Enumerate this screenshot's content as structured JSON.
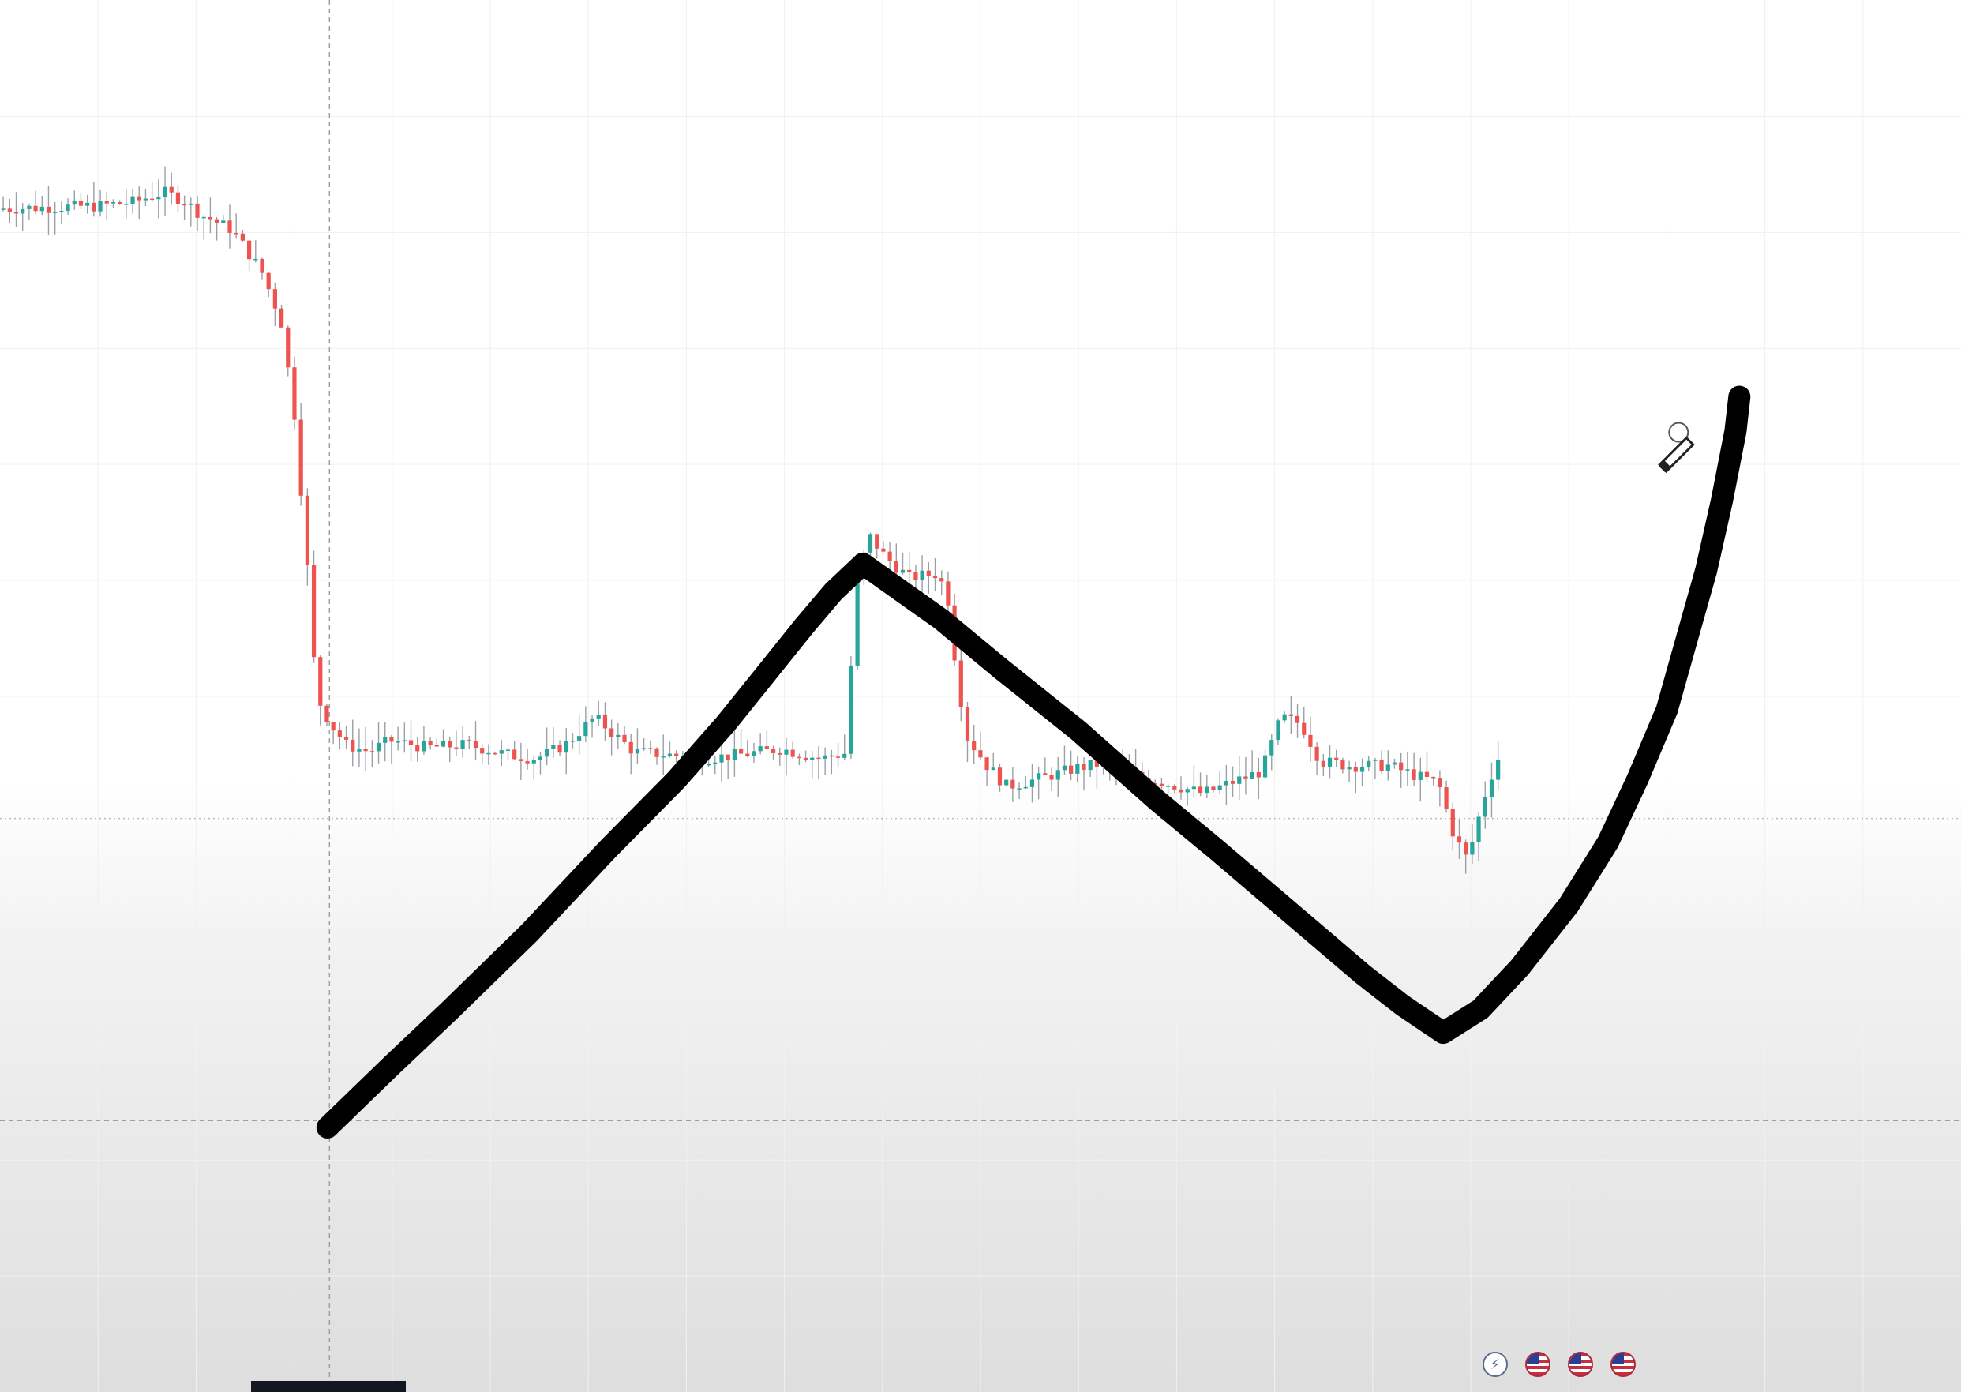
{
  "chart_data": {
    "type": "candlestick",
    "title": "",
    "xlabel": "",
    "ylabel": "",
    "grid": true,
    "colors": {
      "up": "#26a69a",
      "down": "#ef5350",
      "wick": "#9aa0a6",
      "drawing": "#000000",
      "crosshair": "#9aa0a6",
      "grid": "#f1f1f1"
    },
    "ylim": [
      0,
      100
    ],
    "xlim": [
      0,
      100
    ],
    "price_path": [
      [
        0.0,
        85.0
      ],
      [
        5.0,
        85.2
      ],
      [
        7.0,
        85.5
      ],
      [
        8.5,
        86.2
      ],
      [
        9.5,
        85.6
      ],
      [
        10.5,
        84.5
      ],
      [
        12.0,
        83.5
      ],
      [
        13.5,
        80.5
      ],
      [
        14.5,
        77.0
      ],
      [
        15.2,
        70.0
      ],
      [
        15.8,
        60.0
      ],
      [
        16.3,
        50.0
      ],
      [
        17.0,
        48.0
      ],
      [
        17.8,
        46.5
      ],
      [
        19.0,
        46.0
      ],
      [
        20.0,
        46.8
      ],
      [
        22.0,
        46.3
      ],
      [
        24.0,
        46.5
      ],
      [
        26.0,
        45.8
      ],
      [
        27.5,
        45.5
      ],
      [
        29.0,
        46.5
      ],
      [
        30.5,
        48.5
      ],
      [
        31.5,
        47.2
      ],
      [
        32.5,
        46.0
      ],
      [
        34.0,
        45.8
      ],
      [
        36.0,
        45.5
      ],
      [
        38.0,
        45.8
      ],
      [
        40.0,
        46.2
      ],
      [
        42.0,
        45.5
      ],
      [
        43.3,
        45.9
      ],
      [
        43.8,
        58.0
      ],
      [
        44.5,
        61.5
      ],
      [
        45.3,
        60.0
      ],
      [
        46.5,
        58.5
      ],
      [
        48.0,
        58.8
      ],
      [
        48.5,
        57.0
      ],
      [
        49.0,
        51.0
      ],
      [
        49.5,
        47.0
      ],
      [
        50.5,
        45.0
      ],
      [
        51.5,
        43.5
      ],
      [
        53.0,
        44.0
      ],
      [
        55.0,
        44.8
      ],
      [
        56.5,
        45.2
      ],
      [
        58.0,
        44.3
      ],
      [
        60.0,
        43.6
      ],
      [
        61.5,
        43.0
      ],
      [
        63.0,
        43.8
      ],
      [
        64.5,
        44.6
      ],
      [
        65.5,
        48.5
      ],
      [
        66.5,
        48.0
      ],
      [
        67.5,
        45.3
      ],
      [
        69.0,
        45.0
      ],
      [
        71.0,
        45.0
      ],
      [
        72.5,
        44.2
      ],
      [
        73.5,
        43.8
      ],
      [
        74.3,
        40.0
      ],
      [
        75.0,
        38.2
      ],
      [
        75.8,
        42.5
      ],
      [
        76.5,
        45.5
      ]
    ],
    "drawn_path": [
      [
        16.7,
        19.0
      ],
      [
        20.0,
        23.5
      ],
      [
        23.0,
        27.5
      ],
      [
        27.0,
        33.0
      ],
      [
        31.0,
        39.0
      ],
      [
        34.5,
        44.0
      ],
      [
        37.0,
        48.0
      ],
      [
        39.0,
        51.5
      ],
      [
        41.0,
        55.0
      ],
      [
        42.5,
        57.5
      ],
      [
        44.0,
        59.5
      ],
      [
        45.5,
        58.0
      ],
      [
        48.0,
        55.5
      ],
      [
        51.0,
        52.0
      ],
      [
        55.0,
        47.5
      ],
      [
        59.0,
        42.5
      ],
      [
        62.0,
        39.0
      ],
      [
        64.5,
        36.0
      ],
      [
        67.0,
        33.0
      ],
      [
        69.5,
        30.0
      ],
      [
        71.5,
        27.8
      ],
      [
        73.6,
        25.8
      ],
      [
        75.5,
        27.5
      ],
      [
        77.5,
        30.5
      ],
      [
        80.0,
        35.0
      ],
      [
        82.0,
        39.5
      ],
      [
        83.5,
        44.0
      ],
      [
        85.0,
        49.0
      ],
      [
        86.0,
        54.0
      ],
      [
        87.0,
        59.0
      ],
      [
        87.8,
        64.0
      ],
      [
        88.5,
        69.0
      ],
      [
        88.7,
        71.5
      ]
    ],
    "crosshair": {
      "x": 16.8,
      "y": 19.5
    },
    "reference_line_y": 41.2
  },
  "pencil_cursor": {
    "icon": "pencil-cursor-icon",
    "x": 85.6,
    "y": 67.5
  },
  "event_icons": [
    "lightning-icon",
    "us-flag-icon",
    "us-flag-icon",
    "us-flag-icon"
  ],
  "event_glyph": "⚡",
  "time_label": ""
}
